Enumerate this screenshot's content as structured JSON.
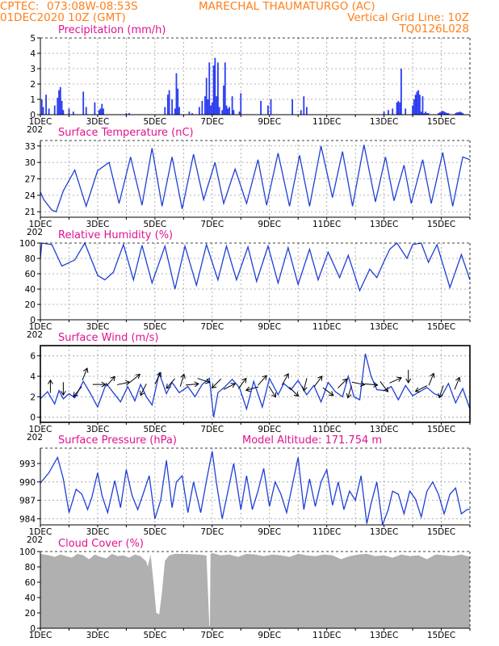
{
  "header": {
    "agency": "CPTEC:",
    "coords": "073:08W-08:53S",
    "location": "MARECHAL THAUMATURGO (AC)",
    "date": "01DEC2020 10Z (GMT)",
    "grid_note": "Vertical Grid Line: 10Z",
    "code": "TQ0126L028"
  },
  "x_axis": {
    "tick_labels": [
      "1DEC",
      "3DEC",
      "5DEC",
      "7DEC",
      "9DEC",
      "11DEC",
      "13DEC",
      "15DEC"
    ],
    "year_fragment": "202"
  },
  "colors": {
    "line": "#1f3fd6",
    "bar": "#2a3cf0",
    "cloud": "#b0b0b0",
    "title": "#e0128f",
    "header": "#ff7f1a"
  },
  "chart_data": [
    {
      "id": "precip",
      "type": "bar",
      "title": "Precipitation (mm/h)",
      "ylim": [
        0,
        5
      ],
      "yticks": [
        0,
        1,
        2,
        3,
        4,
        5
      ],
      "x_units": "days since 1DEC 10Z",
      "xlim": [
        0,
        15
      ],
      "grid": true,
      "bars": [
        [
          0.05,
          1.0
        ],
        [
          0.1,
          0.5
        ],
        [
          0.2,
          1.3
        ],
        [
          0.3,
          0.4
        ],
        [
          0.5,
          0.6
        ],
        [
          0.6,
          1.1
        ],
        [
          0.65,
          1.6
        ],
        [
          0.7,
          1.8
        ],
        [
          0.75,
          0.9
        ],
        [
          0.8,
          0.3
        ],
        [
          1.0,
          0.4
        ],
        [
          1.15,
          0.2
        ],
        [
          1.5,
          1.5
        ],
        [
          1.6,
          0.5
        ],
        [
          1.9,
          0.8
        ],
        [
          2.05,
          0.3
        ],
        [
          2.1,
          0.4
        ],
        [
          2.15,
          0.7
        ],
        [
          2.2,
          0.4
        ],
        [
          3.0,
          0.1
        ],
        [
          3.1,
          0.1
        ],
        [
          4.35,
          0.5
        ],
        [
          4.45,
          1.3
        ],
        [
          4.5,
          1.6
        ],
        [
          4.6,
          1.0
        ],
        [
          4.7,
          0.4
        ],
        [
          4.75,
          2.7
        ],
        [
          4.8,
          1.7
        ],
        [
          4.85,
          0.5
        ],
        [
          5.2,
          0.2
        ],
        [
          5.3,
          0.1
        ],
        [
          5.55,
          0.5
        ],
        [
          5.65,
          0.9
        ],
        [
          5.75,
          1.2
        ],
        [
          5.8,
          2.4
        ],
        [
          5.85,
          1.0
        ],
        [
          5.9,
          3.4
        ],
        [
          5.95,
          0.6
        ],
        [
          6.0,
          0.8
        ],
        [
          6.05,
          3.2
        ],
        [
          6.1,
          3.7
        ],
        [
          6.15,
          1.2
        ],
        [
          6.2,
          3.4
        ],
        [
          6.25,
          0.5
        ],
        [
          6.35,
          0.3
        ],
        [
          6.4,
          1.9
        ],
        [
          6.45,
          3.4
        ],
        [
          6.5,
          0.6
        ],
        [
          6.55,
          0.4
        ],
        [
          6.6,
          0.5
        ],
        [
          6.7,
          1.2
        ],
        [
          6.75,
          0.3
        ],
        [
          6.95,
          0.2
        ],
        [
          7.0,
          1.4
        ],
        [
          7.7,
          0.9
        ],
        [
          7.95,
          0.6
        ],
        [
          8.05,
          1.0
        ],
        [
          8.8,
          1.0
        ],
        [
          9.1,
          0.3
        ],
        [
          9.2,
          1.2
        ],
        [
          9.3,
          0.5
        ],
        [
          12.0,
          0.2
        ],
        [
          12.15,
          0.3
        ],
        [
          12.3,
          0.4
        ],
        [
          12.45,
          0.8
        ],
        [
          12.5,
          0.9
        ],
        [
          12.55,
          0.8
        ],
        [
          12.6,
          3.0
        ],
        [
          12.75,
          0.4
        ],
        [
          13.0,
          0.6
        ],
        [
          13.05,
          1.0
        ],
        [
          13.1,
          1.3
        ],
        [
          13.15,
          1.5
        ],
        [
          13.2,
          1.6
        ],
        [
          13.25,
          1.3
        ],
        [
          13.3,
          0.2
        ],
        [
          13.35,
          1.2
        ],
        [
          13.4,
          0.1
        ],
        [
          13.45,
          0.2
        ],
        [
          13.5,
          0.1
        ],
        [
          13.55,
          0.1
        ],
        [
          13.9,
          0.1
        ],
        [
          13.95,
          0.15
        ],
        [
          14.0,
          0.2
        ],
        [
          14.05,
          0.25
        ],
        [
          14.1,
          0.2
        ],
        [
          14.15,
          0.15
        ],
        [
          14.2,
          0.1
        ],
        [
          14.25,
          0.1
        ],
        [
          14.5,
          0.1
        ],
        [
          14.55,
          0.15
        ],
        [
          14.6,
          0.15
        ],
        [
          14.65,
          0.2
        ],
        [
          14.7,
          0.15
        ],
        [
          14.75,
          0.1
        ]
      ]
    },
    {
      "id": "temp",
      "type": "line",
      "title": "Surface Temperature (nC)",
      "ylim": [
        20,
        34
      ],
      "yticks": [
        21,
        24,
        27,
        30,
        33
      ],
      "xlim": [
        0,
        15
      ],
      "grid": true,
      "x": [
        0,
        0.12,
        0.4,
        0.55,
        0.8,
        1.2,
        1.6,
        2.0,
        2.4,
        2.75,
        3.15,
        3.55,
        3.9,
        4.25,
        4.6,
        4.95,
        5.35,
        5.7,
        6.1,
        6.4,
        6.8,
        7.2,
        7.6,
        7.9,
        8.3,
        8.7,
        9.05,
        9.4,
        9.8,
        10.2,
        10.55,
        10.9,
        11.3,
        11.7,
        12.05,
        12.35,
        12.7,
        12.95,
        13.35,
        13.65,
        14.05,
        14.4,
        14.75,
        15.0
      ],
      "y": [
        24.6,
        23.2,
        21.3,
        21.0,
        24.8,
        28.6,
        22.0,
        28.5,
        30.0,
        22.5,
        31.0,
        22.2,
        32.6,
        22.0,
        31.0,
        21.5,
        31.5,
        23.2,
        30.0,
        22.5,
        28.8,
        22.5,
        30.5,
        22.2,
        31.7,
        22.0,
        31.3,
        22.0,
        33.0,
        23.6,
        32.0,
        22.0,
        33.2,
        22.8,
        31.0,
        23.0,
        29.5,
        22.5,
        30.5,
        22.5,
        31.8,
        22.0,
        31.0,
        30.5
      ]
    },
    {
      "id": "rh",
      "type": "line",
      "title": "Relative Humidity (%)",
      "ylim": [
        0,
        100
      ],
      "yticks": [
        0,
        20,
        40,
        60,
        80,
        100
      ],
      "xlim": [
        0,
        15
      ],
      "grid": true,
      "x": [
        0,
        0.05,
        0.4,
        0.75,
        1.2,
        1.55,
        2.0,
        2.25,
        2.55,
        2.9,
        3.25,
        3.55,
        3.9,
        4.35,
        4.7,
        5.05,
        5.45,
        5.8,
        6.2,
        6.5,
        6.85,
        7.25,
        7.55,
        7.95,
        8.3,
        8.65,
        9.0,
        9.4,
        9.7,
        10.05,
        10.45,
        10.75,
        11.15,
        11.5,
        11.75,
        11.95,
        12.2,
        12.45,
        12.8,
        13.0,
        13.3,
        13.55,
        13.85,
        14.3,
        14.7,
        15.0
      ],
      "y": [
        80,
        100,
        98,
        70,
        78,
        100,
        58,
        52,
        62,
        98,
        52,
        97,
        48,
        96,
        40,
        96,
        45,
        98,
        52,
        96,
        52,
        95,
        50,
        96,
        48,
        94,
        46,
        92,
        52,
        88,
        55,
        84,
        38,
        66,
        55,
        72,
        92,
        100,
        80,
        98,
        100,
        75,
        98,
        42,
        85,
        52
      ]
    },
    {
      "id": "wind",
      "type": "line",
      "title": "Surface Wind (m/s)",
      "ylim": [
        -0.5,
        7
      ],
      "yticks": [
        0,
        2,
        4,
        6
      ],
      "xlim": [
        0,
        15
      ],
      "grid": true,
      "x": [
        0,
        0.25,
        0.5,
        0.65,
        0.8,
        1.0,
        1.2,
        1.5,
        1.75,
        2.0,
        2.3,
        2.55,
        2.8,
        3.05,
        3.3,
        3.5,
        3.7,
        3.9,
        4.15,
        4.4,
        4.6,
        4.85,
        5.15,
        5.4,
        5.65,
        5.9,
        6.05,
        6.2,
        6.45,
        6.7,
        6.95,
        7.2,
        7.45,
        7.75,
        8.0,
        8.3,
        8.5,
        8.75,
        9.0,
        9.3,
        9.55,
        9.8,
        10.05,
        10.3,
        10.55,
        10.75,
        10.95,
        11.15,
        11.35,
        11.55,
        11.75,
        12.0,
        12.25,
        12.5,
        12.75,
        13.0,
        13.25,
        13.5,
        13.75,
        14.0,
        14.25,
        14.5,
        14.75,
        15.0
      ],
      "y": [
        1.8,
        2.5,
        1.3,
        2.6,
        1.8,
        2.3,
        1.9,
        3.5,
        2.3,
        1.0,
        3.3,
        2.4,
        1.5,
        3.0,
        1.6,
        3.2,
        2.0,
        1.2,
        4.3,
        2.3,
        3.4,
        2.4,
        3.0,
        2.0,
        3.2,
        3.8,
        0.0,
        2.4,
        3.0,
        3.7,
        2.9,
        0.8,
        3.5,
        1.0,
        3.8,
        2.2,
        3.3,
        2.7,
        3.6,
        2.2,
        3.1,
        1.5,
        3.4,
        2.5,
        2.0,
        4.0,
        2.0,
        1.7,
        6.2,
        4.0,
        2.7,
        2.6,
        3.0,
        1.7,
        3.1,
        2.1,
        2.5,
        2.9,
        2.3,
        2.0,
        3.3,
        1.4,
        2.8,
        0.8
      ],
      "arrows": [
        [
          0.35,
          3.0,
          0,
          1
        ],
        [
          0.8,
          2.8,
          0,
          -1
        ],
        [
          1.3,
          2.5,
          -0.5,
          -0.6
        ],
        [
          1.55,
          4.2,
          0.4,
          1
        ],
        [
          2.05,
          3.2,
          1,
          0
        ],
        [
          2.45,
          3.5,
          0.8,
          0.9
        ],
        [
          2.9,
          3.3,
          1,
          0.2
        ],
        [
          3.3,
          3.8,
          1,
          0.8
        ],
        [
          3.6,
          2.7,
          -0.4,
          -0.8
        ],
        [
          4.1,
          3.8,
          0.5,
          1
        ],
        [
          4.55,
          3.3,
          -0.6,
          -0.7
        ],
        [
          4.95,
          3.6,
          0.3,
          1
        ],
        [
          5.3,
          3.2,
          1,
          0.1
        ],
        [
          5.7,
          3.6,
          0.9,
          -0.3
        ],
        [
          6.15,
          3.3,
          -0.5,
          -0.5
        ],
        [
          6.6,
          3.0,
          0.8,
          0.4
        ],
        [
          7.05,
          3.3,
          0.6,
          0.8
        ],
        [
          7.4,
          2.8,
          -0.7,
          -0.2
        ],
        [
          7.75,
          3.6,
          0.7,
          0.8
        ],
        [
          8.1,
          2.5,
          0.5,
          -0.8
        ],
        [
          8.55,
          3.7,
          0.5,
          0.9
        ],
        [
          8.85,
          2.5,
          0.6,
          -0.6
        ],
        [
          9.25,
          3.2,
          -0.2,
          -0.8
        ],
        [
          9.7,
          3.5,
          0.6,
          0.8
        ],
        [
          10.05,
          2.5,
          0.8,
          -0.6
        ],
        [
          10.55,
          3.3,
          0.8,
          0.8
        ],
        [
          10.8,
          2.5,
          -0.3,
          -1
        ],
        [
          11.1,
          3.3,
          1,
          -0.2
        ],
        [
          11.55,
          3.2,
          1,
          -0.1
        ],
        [
          12.0,
          3.0,
          0.6,
          -0.8
        ],
        [
          12.4,
          3.6,
          0.9,
          0.4
        ],
        [
          12.85,
          4.0,
          0,
          -1
        ],
        [
          13.3,
          2.8,
          -0.6,
          -0.3
        ],
        [
          13.65,
          3.7,
          0.4,
          1
        ],
        [
          14.0,
          2.5,
          -0.3,
          -0.9
        ],
        [
          14.55,
          3.3,
          0.4,
          1
        ]
      ]
    },
    {
      "id": "pressure",
      "type": "line",
      "title": "Surface Pressure (hPa)",
      "annotation": "Model Altitude: 171.754 m",
      "ylim": [
        983,
        995.5
      ],
      "yticks": [
        984,
        987,
        990,
        993
      ],
      "xlim": [
        0,
        15
      ],
      "grid": true,
      "x": [
        0,
        0.3,
        0.6,
        0.8,
        1.0,
        1.25,
        1.45,
        1.65,
        1.8,
        2.0,
        2.15,
        2.35,
        2.6,
        2.8,
        3.0,
        3.2,
        3.4,
        3.6,
        3.8,
        4.0,
        4.2,
        4.4,
        4.6,
        4.75,
        4.95,
        5.15,
        5.35,
        5.6,
        5.8,
        6.0,
        6.15,
        6.35,
        6.55,
        6.75,
        7.0,
        7.2,
        7.4,
        7.6,
        7.8,
        8.0,
        8.2,
        8.4,
        8.6,
        8.8,
        9.0,
        9.2,
        9.4,
        9.6,
        9.8,
        10.0,
        10.2,
        10.4,
        10.6,
        10.8,
        11.0,
        11.2,
        11.4,
        11.55,
        11.75,
        11.95,
        12.15,
        12.3,
        12.5,
        12.7,
        12.9,
        13.1,
        13.3,
        13.5,
        13.7,
        13.9,
        14.1,
        14.3,
        14.5,
        14.7,
        14.9,
        15.0
      ],
      "y": [
        989.8,
        991.5,
        994.0,
        990.5,
        985.0,
        988.8,
        988.0,
        985.5,
        987.5,
        991.5,
        987.8,
        985.0,
        990.2,
        985.8,
        992.0,
        987.8,
        985.5,
        988.2,
        991.0,
        984.0,
        987.0,
        993.5,
        985.8,
        990.0,
        991.0,
        985.0,
        990.0,
        985.0,
        990.2,
        995.0,
        989.8,
        984.0,
        988.5,
        993.0,
        985.5,
        991.0,
        985.5,
        988.5,
        992.2,
        986.0,
        990.0,
        988.0,
        985.0,
        989.5,
        994.0,
        985.5,
        990.5,
        986.0,
        990.0,
        992.0,
        986.2,
        990.0,
        985.5,
        988.5,
        987.0,
        991.0,
        983.2,
        986.5,
        990.0,
        983.0,
        985.5,
        988.5,
        988.0,
        984.8,
        988.5,
        987.2,
        984.3,
        988.5,
        990.0,
        988.0,
        984.8,
        988.0,
        989.0,
        984.8,
        985.5,
        985.5
      ]
    },
    {
      "id": "cloud",
      "type": "area",
      "title": "Cloud Cover (%)",
      "ylim": [
        0,
        100
      ],
      "yticks": [
        0,
        20,
        40,
        60,
        80,
        100
      ],
      "xlim": [
        0,
        15
      ],
      "grid": false,
      "x": [
        0,
        0.3,
        0.5,
        0.7,
        0.9,
        1.1,
        1.3,
        1.5,
        1.7,
        1.9,
        2.1,
        2.3,
        2.5,
        2.7,
        2.9,
        3.1,
        3.3,
        3.5,
        3.7,
        3.75,
        3.85,
        3.95,
        4.05,
        4.15,
        4.25,
        4.35,
        4.5,
        4.7,
        5.0,
        5.5,
        5.8,
        5.9,
        5.92,
        5.94,
        6.0,
        6.3,
        6.6,
        6.9,
        7.2,
        7.5,
        7.8,
        8.1,
        8.4,
        8.7,
        9.0,
        9.3,
        9.6,
        9.9,
        10.2,
        10.5,
        10.8,
        11.1,
        11.4,
        11.7,
        12.0,
        12.3,
        12.6,
        12.9,
        13.2,
        13.5,
        13.8,
        14.1,
        14.4,
        14.7,
        15.0
      ],
      "y": [
        97,
        95,
        93,
        96,
        94,
        92,
        97,
        95,
        90,
        96,
        93,
        91,
        97,
        94,
        95,
        92,
        96,
        94,
        87,
        80,
        96,
        60,
        20,
        18,
        48,
        88,
        95,
        97,
        97,
        96,
        95,
        3,
        3,
        97,
        98,
        95,
        96,
        93,
        97,
        96,
        94,
        96,
        95,
        93,
        97,
        95,
        94,
        96,
        95,
        90,
        94,
        96,
        97,
        94,
        95,
        92,
        96,
        94,
        95,
        90,
        96,
        95,
        94,
        96,
        93
      ]
    }
  ]
}
